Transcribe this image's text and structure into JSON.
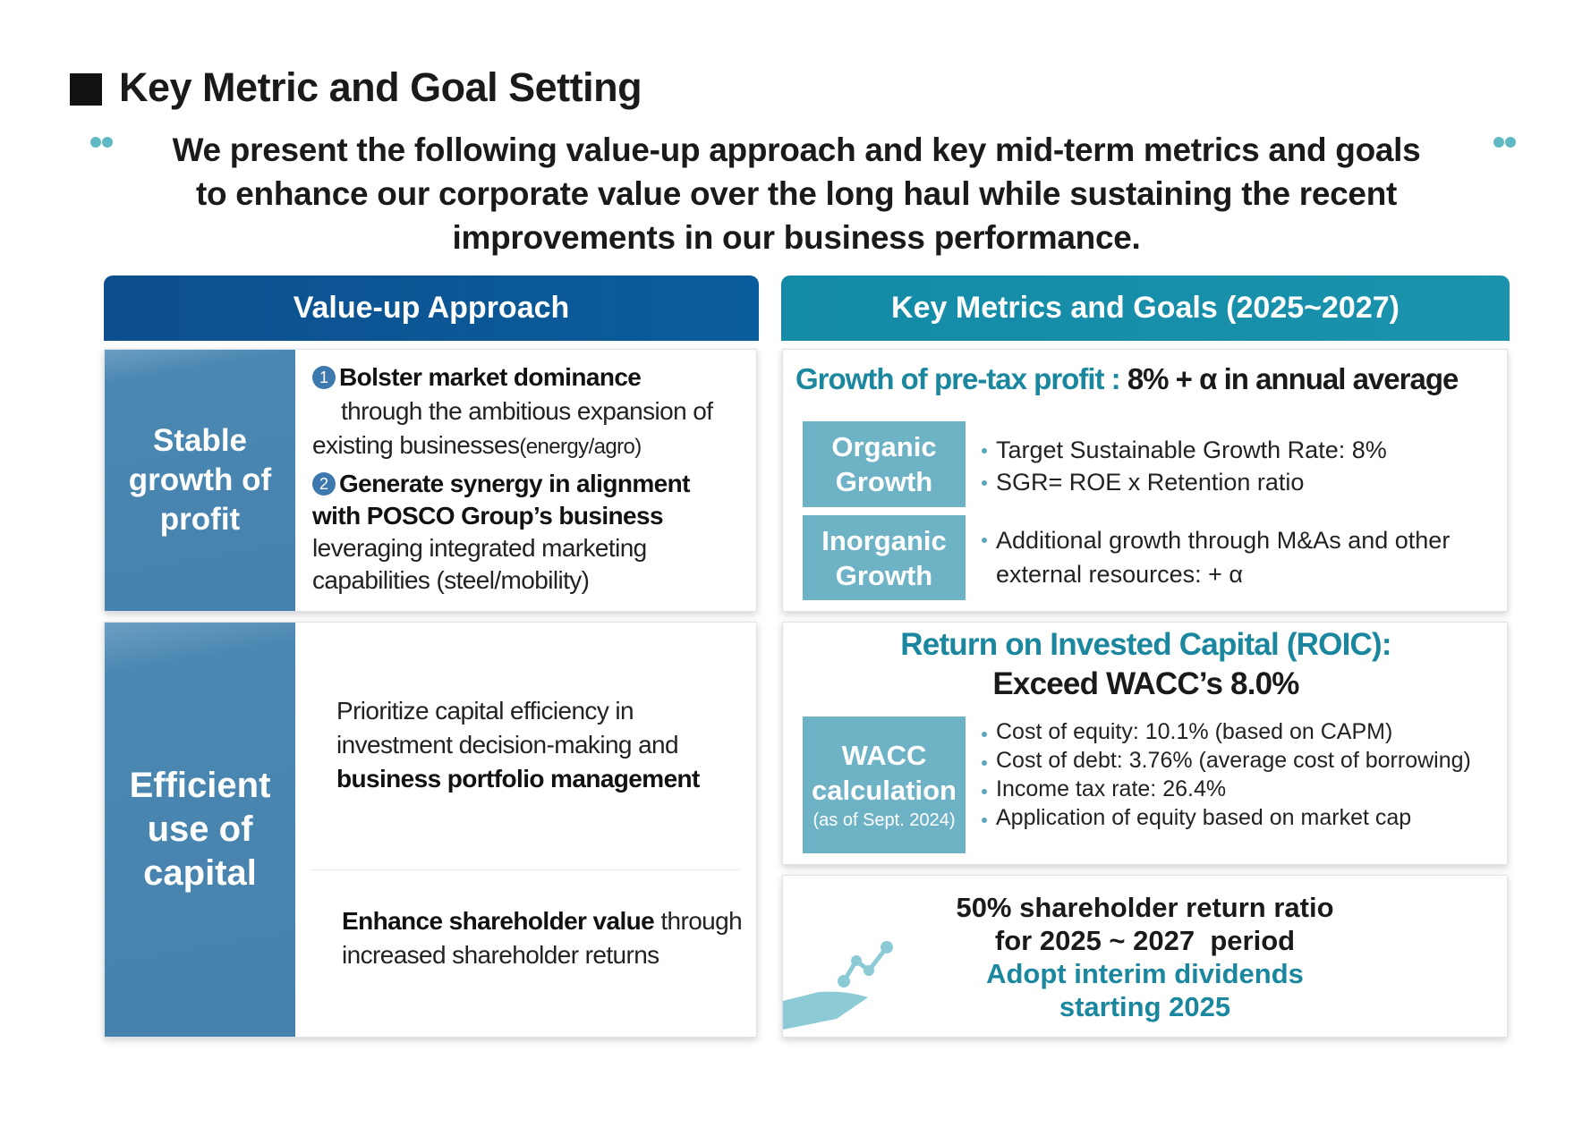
{
  "header": {
    "title": "Key Metric and Goal Setting",
    "intro": [
      "We present the following value-up approach and key mid-term metrics and goals",
      "to enhance our corporate value over the long haul while sustaining the recent",
      "improvements in our business performance."
    ]
  },
  "left": {
    "heading": "Value-up Approach",
    "sections": [
      {
        "label": "Stable growth of profit",
        "items": [
          {
            "number": "1",
            "bold": "Bolster market dominance",
            "text": "through the ambitious expansion of existing businesses",
            "note": "(energy/agro)"
          },
          {
            "number": "2",
            "bold": "Generate synergy in alignment with POSCO Group’s business",
            "text": "leveraging integrated marketing capabilities (steel/mobility)"
          }
        ]
      },
      {
        "label": "Efficient use of capital",
        "items": [
          {
            "text": "Prioritize capital efficiency in investment decision-making and",
            "bold": "business portfolio management"
          },
          {
            "bold": "Enhance shareholder value",
            "text": "through increased shareholder returns"
          }
        ]
      }
    ]
  },
  "right": {
    "heading": "Key Metrics and Goals (2025~2027)",
    "growth": {
      "title_label": "Growth of pre-tax profit :",
      "title_goal": "8% + α in annual average",
      "rows": [
        {
          "label": "Organic Growth",
          "bullets": [
            "Target Sustainable Growth Rate: 8%",
            "SGR= ROE x Retention ratio"
          ]
        },
        {
          "label": "Inorganic Growth",
          "bullets": [
            "Additional growth through M&As and other external resources: + α"
          ]
        }
      ]
    },
    "roic": {
      "title": "Return on Invested Capital (ROIC):",
      "goal": "Exceed WACC’s 8.0%",
      "label": "WACC calculation",
      "label_note": "(as of Sept. 2024)",
      "bullets": [
        "Cost of equity: 10.1% (based on CAPM)",
        "Cost of debt: 3.76% (average cost of borrowing)",
        "Income tax rate: 26.4%",
        "Application of equity based on market cap"
      ]
    },
    "shareholder": {
      "lines": [
        "50% shareholder return ratio",
        "for 2025 ~ 2027  period"
      ],
      "highlight": [
        "Adopt interim dividends",
        "starting 2025"
      ]
    }
  }
}
